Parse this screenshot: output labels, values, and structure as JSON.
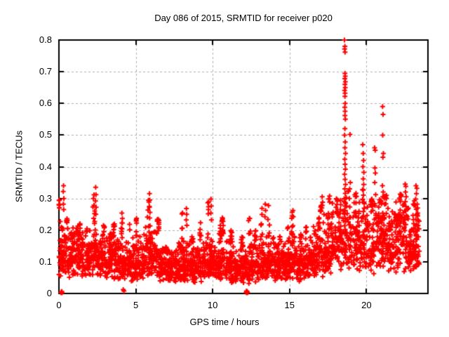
{
  "chart_data": {
    "type": "scatter",
    "title": "Day 086 of 2015, SRMTID for receiver p020",
    "xlabel": "GPS time / hours",
    "ylabel": "SRMTID / TECUs",
    "xlim": [
      0,
      24
    ],
    "ylim": [
      0,
      0.8
    ],
    "xticks": [
      {
        "v": 0,
        "label": "0"
      },
      {
        "v": 5,
        "label": "5"
      },
      {
        "v": 10,
        "label": "10"
      },
      {
        "v": 15,
        "label": "15"
      },
      {
        "v": 20,
        "label": "20"
      }
    ],
    "yticks": [
      {
        "v": 0.0,
        "label": "0"
      },
      {
        "v": 0.1,
        "label": "0.1"
      },
      {
        "v": 0.2,
        "label": "0.2"
      },
      {
        "v": 0.3,
        "label": "0.3"
      },
      {
        "v": 0.4,
        "label": "0.4"
      },
      {
        "v": 0.5,
        "label": "0.5"
      },
      {
        "v": 0.6,
        "label": "0.6"
      },
      {
        "v": 0.7,
        "label": "0.7"
      },
      {
        "v": 0.8,
        "label": "0.8"
      }
    ],
    "grid": true,
    "legend": "none",
    "colors": {
      "marker": "#ff0000",
      "grid": "#b0b0b0",
      "border": "#000000",
      "background": "#ffffff",
      "text": "#000000"
    },
    "marker": {
      "shape": "plus",
      "size": 7,
      "stroke": 2
    },
    "series": [
      {
        "name": "SRMTID",
        "seed": 20150086,
        "envelope_bins": [
          [
            0.0,
            0.5,
            70,
            0.07,
            0.14,
            0.3
          ],
          [
            0.5,
            1.0,
            65,
            0.07,
            0.13,
            0.24
          ],
          [
            1.0,
            1.5,
            60,
            0.06,
            0.12,
            0.22
          ],
          [
            1.5,
            2.0,
            60,
            0.06,
            0.11,
            0.21
          ],
          [
            2.0,
            2.5,
            60,
            0.06,
            0.12,
            0.32
          ],
          [
            2.5,
            3.0,
            60,
            0.06,
            0.1,
            0.22
          ],
          [
            3.0,
            3.5,
            60,
            0.05,
            0.1,
            0.19
          ],
          [
            3.5,
            4.0,
            60,
            0.05,
            0.1,
            0.22
          ],
          [
            4.0,
            4.5,
            60,
            0.05,
            0.09,
            0.26
          ],
          [
            4.5,
            5.0,
            60,
            0.05,
            0.1,
            0.22
          ],
          [
            5.0,
            5.5,
            60,
            0.05,
            0.1,
            0.24
          ],
          [
            5.5,
            6.0,
            60,
            0.06,
            0.12,
            0.3
          ],
          [
            6.0,
            6.5,
            60,
            0.05,
            0.11,
            0.24
          ],
          [
            6.5,
            7.0,
            60,
            0.04,
            0.08,
            0.15
          ],
          [
            7.0,
            7.5,
            60,
            0.04,
            0.08,
            0.14
          ],
          [
            7.5,
            8.0,
            60,
            0.04,
            0.08,
            0.16
          ],
          [
            8.0,
            8.5,
            60,
            0.05,
            0.09,
            0.26
          ],
          [
            8.5,
            9.0,
            60,
            0.05,
            0.09,
            0.18
          ],
          [
            9.0,
            9.5,
            60,
            0.04,
            0.09,
            0.23
          ],
          [
            9.5,
            10.0,
            60,
            0.05,
            0.1,
            0.29
          ],
          [
            10.0,
            10.5,
            60,
            0.05,
            0.09,
            0.22
          ],
          [
            10.5,
            11.0,
            60,
            0.05,
            0.1,
            0.24
          ],
          [
            11.0,
            11.5,
            60,
            0.04,
            0.09,
            0.2
          ],
          [
            11.5,
            12.0,
            60,
            0.04,
            0.08,
            0.18
          ],
          [
            12.0,
            12.5,
            60,
            0.04,
            0.08,
            0.24
          ],
          [
            12.5,
            13.0,
            60,
            0.05,
            0.09,
            0.2
          ],
          [
            13.0,
            13.5,
            60,
            0.05,
            0.1,
            0.27
          ],
          [
            13.5,
            14.0,
            60,
            0.05,
            0.1,
            0.28
          ],
          [
            14.0,
            14.5,
            60,
            0.05,
            0.09,
            0.18
          ],
          [
            14.5,
            15.0,
            60,
            0.05,
            0.09,
            0.21
          ],
          [
            15.0,
            15.5,
            60,
            0.05,
            0.1,
            0.26
          ],
          [
            15.5,
            16.0,
            60,
            0.05,
            0.09,
            0.19
          ],
          [
            16.0,
            16.5,
            60,
            0.06,
            0.1,
            0.21
          ],
          [
            16.5,
            17.0,
            60,
            0.07,
            0.12,
            0.24
          ],
          [
            17.0,
            17.5,
            60,
            0.08,
            0.14,
            0.28
          ],
          [
            17.5,
            18.0,
            60,
            0.09,
            0.16,
            0.31
          ],
          [
            18.0,
            18.5,
            60,
            0.1,
            0.17,
            0.3
          ],
          [
            18.5,
            19.0,
            55,
            0.1,
            0.18,
            0.33
          ],
          [
            19.0,
            19.5,
            60,
            0.1,
            0.17,
            0.32
          ],
          [
            19.5,
            20.0,
            55,
            0.1,
            0.17,
            0.33
          ],
          [
            20.0,
            20.5,
            60,
            0.09,
            0.16,
            0.3
          ],
          [
            20.5,
            21.0,
            60,
            0.1,
            0.17,
            0.3
          ],
          [
            21.0,
            21.5,
            60,
            0.1,
            0.17,
            0.31
          ],
          [
            21.5,
            22.0,
            60,
            0.08,
            0.15,
            0.29
          ],
          [
            22.0,
            22.5,
            60,
            0.08,
            0.16,
            0.32
          ],
          [
            22.5,
            23.0,
            60,
            0.07,
            0.13,
            0.27
          ],
          [
            23.0,
            23.45,
            55,
            0.08,
            0.15,
            0.3
          ]
        ],
        "explicit_points": [
          [
            0.14,
            0.002
          ],
          [
            0.17,
            0.004
          ],
          [
            0.2,
            0.002
          ],
          [
            0.16,
            0.006
          ],
          [
            0.19,
            0.006
          ],
          [
            4.18,
            0.012
          ],
          [
            4.23,
            0.008
          ],
          [
            12.18,
            0.004
          ],
          [
            12.21,
            0.002
          ],
          [
            12.24,
            0.006
          ],
          [
            12.27,
            0.003
          ],
          [
            12.2,
            0.008
          ],
          [
            0.3,
            0.34
          ],
          [
            0.28,
            0.322
          ],
          [
            0.32,
            0.3
          ],
          [
            0.29,
            0.282
          ],
          [
            0.31,
            0.265
          ],
          [
            2.39,
            0.335
          ],
          [
            2.41,
            0.312
          ],
          [
            2.38,
            0.292
          ],
          [
            2.42,
            0.272
          ],
          [
            2.4,
            0.25
          ],
          [
            5.89,
            0.315
          ],
          [
            5.91,
            0.295
          ],
          [
            5.88,
            0.275
          ],
          [
            5.92,
            0.256
          ],
          [
            5.9,
            0.238
          ],
          [
            8.29,
            0.268
          ],
          [
            8.31,
            0.25
          ],
          [
            8.28,
            0.232
          ],
          [
            8.32,
            0.215
          ],
          [
            9.89,
            0.298
          ],
          [
            9.91,
            0.276
          ],
          [
            9.88,
            0.254
          ],
          [
            9.92,
            0.232
          ],
          [
            13.42,
            0.282
          ],
          [
            13.44,
            0.262
          ],
          [
            13.4,
            0.242
          ],
          [
            15.22,
            0.262
          ],
          [
            15.24,
            0.242
          ],
          [
            17.12,
            0.305
          ],
          [
            17.15,
            0.288
          ],
          [
            17.1,
            0.27
          ],
          [
            18.57,
            0.8
          ],
          [
            18.6,
            0.78
          ],
          [
            18.58,
            0.772
          ],
          [
            18.61,
            0.762
          ],
          [
            18.6,
            0.695
          ],
          [
            18.62,
            0.686
          ],
          [
            18.59,
            0.678
          ],
          [
            18.63,
            0.668
          ],
          [
            18.6,
            0.66
          ],
          [
            18.62,
            0.65
          ],
          [
            18.58,
            0.641
          ],
          [
            18.61,
            0.632
          ],
          [
            18.6,
            0.622
          ],
          [
            18.62,
            0.6
          ],
          [
            18.59,
            0.588
          ],
          [
            18.61,
            0.575
          ],
          [
            18.6,
            0.562
          ],
          [
            18.63,
            0.55
          ],
          [
            18.6,
            0.52
          ],
          [
            18.58,
            0.5
          ],
          [
            18.62,
            0.478
          ],
          [
            18.6,
            0.46
          ],
          [
            18.64,
            0.442
          ],
          [
            18.59,
            0.424
          ],
          [
            18.61,
            0.408
          ],
          [
            18.63,
            0.392
          ],
          [
            18.58,
            0.376
          ],
          [
            18.61,
            0.36
          ],
          [
            18.64,
            0.344
          ],
          [
            18.59,
            0.33
          ],
          [
            18.62,
            0.316
          ],
          [
            18.66,
            0.302
          ],
          [
            18.55,
            0.29
          ],
          [
            18.6,
            0.276
          ],
          [
            18.63,
            0.262
          ],
          [
            18.57,
            0.25
          ],
          [
            18.61,
            0.238
          ],
          [
            18.64,
            0.226
          ],
          [
            18.58,
            0.214
          ],
          [
            18.62,
            0.202
          ],
          [
            18.93,
            0.502
          ],
          [
            18.95,
            0.35
          ],
          [
            18.91,
            0.33
          ],
          [
            19.76,
            0.47
          ],
          [
            19.79,
            0.442
          ],
          [
            19.81,
            0.42
          ],
          [
            19.77,
            0.4
          ],
          [
            19.83,
            0.382
          ],
          [
            19.79,
            0.362
          ],
          [
            19.82,
            0.344
          ],
          [
            19.78,
            0.328
          ],
          [
            19.8,
            0.31
          ],
          [
            19.75,
            0.296
          ],
          [
            20.53,
            0.46
          ],
          [
            20.57,
            0.452
          ],
          [
            20.55,
            0.396
          ],
          [
            20.58,
            0.38
          ],
          [
            20.54,
            0.35
          ],
          [
            20.6,
            0.312
          ],
          [
            21.05,
            0.59
          ],
          [
            21.08,
            0.565
          ],
          [
            21.06,
            0.5
          ],
          [
            21.1,
            0.442
          ],
          [
            21.07,
            0.43
          ],
          [
            21.04,
            0.34
          ],
          [
            21.09,
            0.32
          ],
          [
            21.06,
            0.305
          ],
          [
            22.52,
            0.345
          ],
          [
            22.56,
            0.338
          ],
          [
            22.54,
            0.32
          ],
          [
            22.58,
            0.305
          ],
          [
            22.53,
            0.29
          ],
          [
            22.57,
            0.275
          ],
          [
            22.55,
            0.26
          ],
          [
            22.6,
            0.246
          ],
          [
            22.51,
            0.232
          ],
          [
            22.56,
            0.218
          ],
          [
            23.22,
            0.34
          ],
          [
            23.28,
            0.332
          ],
          [
            23.25,
            0.315
          ],
          [
            23.2,
            0.298
          ],
          [
            23.3,
            0.282
          ],
          [
            23.24,
            0.266
          ],
          [
            23.27,
            0.25
          ],
          [
            23.21,
            0.234
          ],
          [
            23.26,
            0.218
          ],
          [
            23.3,
            0.202
          ],
          [
            23.23,
            0.186
          ],
          [
            23.28,
            0.17
          ]
        ]
      }
    ]
  }
}
